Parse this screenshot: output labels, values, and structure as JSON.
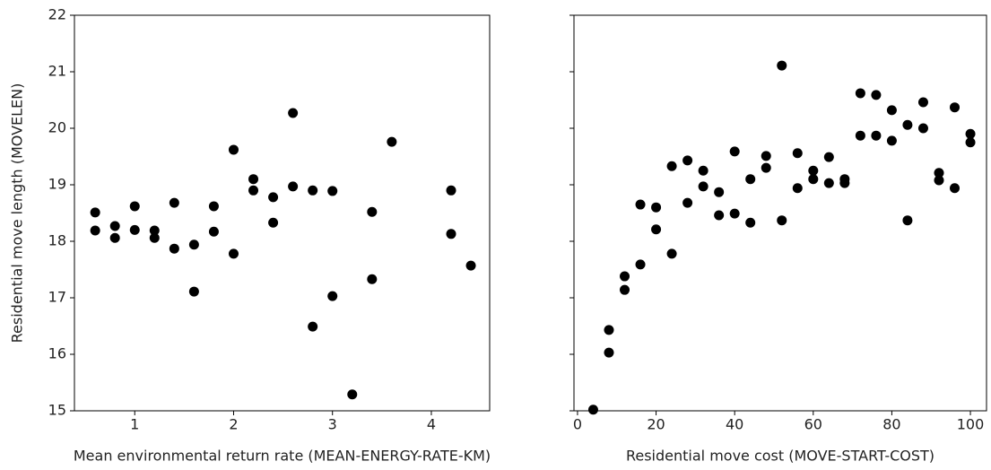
{
  "chart_data": [
    {
      "type": "scatter",
      "xlabel": "Mean environmental return rate (MEAN-ENERGY-RATE-KM)",
      "ylabel": "Residential move length (MOVELEN)",
      "x": [
        0.6,
        0.6,
        0.8,
        0.8,
        1.0,
        1.0,
        1.2,
        1.2,
        1.4,
        1.4,
        1.6,
        1.6,
        1.8,
        1.8,
        2.0,
        2.0,
        2.2,
        2.2,
        2.4,
        2.4,
        2.6,
        2.6,
        2.8,
        2.8,
        3.0,
        3.0,
        3.2,
        3.4,
        3.4,
        3.6,
        4.2,
        4.2,
        4.4
      ],
      "values": [
        18.51,
        18.19,
        18.27,
        18.06,
        18.62,
        18.2,
        18.19,
        18.06,
        18.68,
        17.87,
        17.94,
        17.11,
        18.62,
        18.17,
        19.62,
        17.78,
        19.1,
        18.9,
        18.78,
        18.33,
        20.27,
        18.97,
        18.9,
        16.49,
        18.89,
        17.03,
        15.29,
        18.52,
        17.33,
        19.76,
        18.9,
        18.13,
        17.57
      ],
      "color": "#000000",
      "xlim": [
        0.39,
        4.59
      ],
      "ylim": [
        15,
        22
      ],
      "xticks": [
        1,
        2,
        3,
        4
      ],
      "yticks": [
        15,
        16,
        17,
        18,
        19,
        20,
        21,
        22
      ]
    },
    {
      "type": "scatter",
      "xlabel": "Residential move cost (MOVE-START-COST)",
      "x": [
        4,
        8,
        8,
        12,
        12,
        16,
        16,
        20,
        20,
        24,
        24,
        28,
        28,
        32,
        32,
        36,
        36,
        40,
        40,
        44,
        44,
        48,
        48,
        52,
        52,
        56,
        56,
        60,
        60,
        64,
        64,
        68,
        68,
        72,
        72,
        76,
        76,
        80,
        80,
        84,
        84,
        88,
        88,
        92,
        92,
        96,
        96,
        100,
        100
      ],
      "values": [
        15.02,
        16.43,
        16.03,
        17.38,
        17.14,
        18.65,
        17.59,
        18.6,
        18.21,
        19.33,
        17.78,
        19.43,
        18.68,
        19.25,
        18.97,
        18.87,
        18.46,
        19.59,
        18.49,
        19.1,
        18.33,
        19.51,
        19.3,
        21.11,
        18.37,
        19.56,
        18.94,
        19.25,
        19.1,
        19.49,
        19.03,
        19.1,
        19.03,
        20.62,
        19.87,
        20.59,
        19.87,
        20.32,
        19.78,
        20.06,
        18.37,
        20.46,
        20.0,
        19.21,
        19.08,
        20.37,
        18.94,
        19.9,
        19.75
      ],
      "color": "#000000",
      "xlim": [
        -0.9,
        104.1
      ],
      "ylim": [
        15,
        22
      ],
      "xticks": [
        0,
        20,
        40,
        60,
        80,
        100
      ]
    }
  ]
}
